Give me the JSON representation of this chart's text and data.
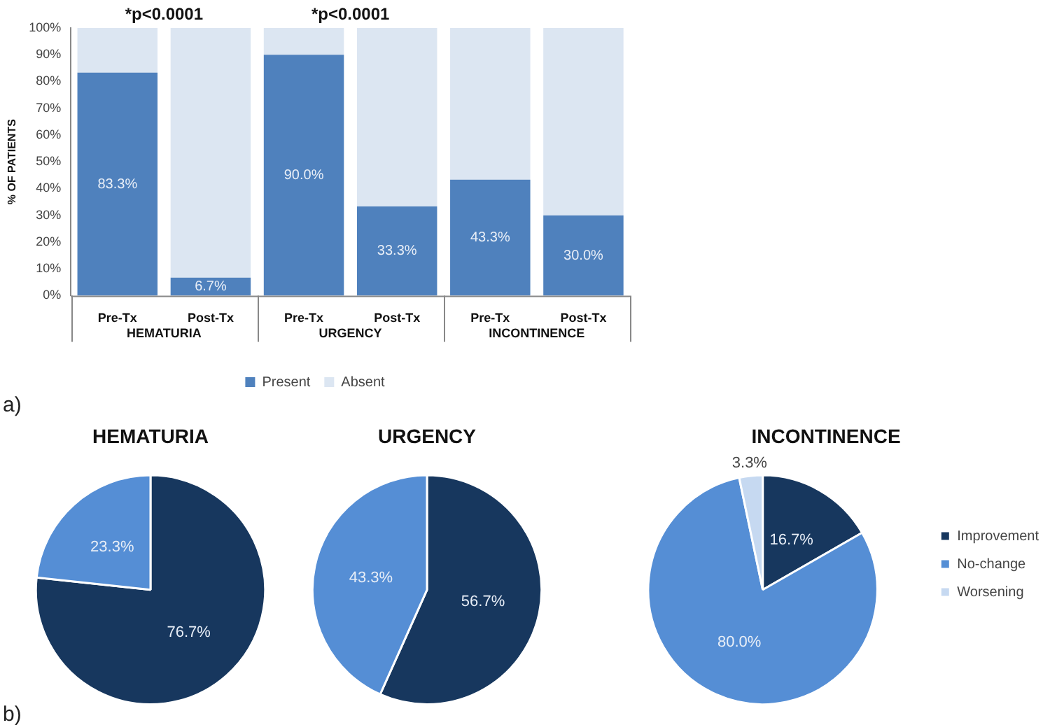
{
  "chart_data": [
    {
      "type": "bar",
      "ylabel": "% OF PATIENTS",
      "stacked": true,
      "categories": [
        "Pre-Tx",
        "Post-Tx",
        "Pre-Tx",
        "Post-Tx",
        "Pre-Tx",
        "Post-Tx"
      ],
      "series": [
        {
          "name": "Present",
          "color": "#4f81bd",
          "values": [
            83.3,
            6.7,
            90.0,
            33.3,
            43.3,
            30.0
          ],
          "value_labels": [
            "83.3%",
            "6.7%",
            "90.0%",
            "33.3%",
            "43.3%",
            "30.0%"
          ]
        },
        {
          "name": "Absent",
          "color": "#dce6f2",
          "values": [
            16.7,
            93.3,
            10.0,
            66.7,
            56.7,
            70.0
          ]
        }
      ],
      "ylim": [
        0,
        100
      ],
      "yticks": [
        {
          "value": 0,
          "label": "0%"
        },
        {
          "value": 10,
          "label": "10%"
        },
        {
          "value": 20,
          "label": "20%"
        },
        {
          "value": 30,
          "label": "30%"
        },
        {
          "value": 40,
          "label": "40%"
        },
        {
          "value": 50,
          "label": "50%"
        },
        {
          "value": 60,
          "label": "60%"
        },
        {
          "value": 70,
          "label": "70%"
        },
        {
          "value": 80,
          "label": "80%"
        },
        {
          "value": 90,
          "label": "90%"
        },
        {
          "value": 100,
          "label": "100%"
        }
      ],
      "grid": false,
      "legend": "bottom",
      "annotations": [
        "*p<0.0001",
        "*p<0.0001",
        "HEMATURIA",
        "URGENCY",
        "INCONTINENCE",
        "a)"
      ]
    },
    {
      "type": "pie",
      "title": "HEMATURIA",
      "categories": [
        null,
        null
      ],
      "values": [
        76.7,
        23.3
      ],
      "colors": [
        "#17375e",
        "#558ed5"
      ],
      "value_labels": [
        "76.7%",
        "23.3%"
      ],
      "legend": false,
      "annotations": [
        "b)"
      ]
    },
    {
      "type": "pie",
      "title": "URGENCY",
      "categories": [
        null,
        null
      ],
      "values": [
        56.7,
        43.3
      ],
      "colors": [
        "#17375e",
        "#558ed5"
      ],
      "value_labels": [
        "56.7%",
        "43.3%"
      ],
      "legend": false
    },
    {
      "type": "pie",
      "title": "INCONTINENCE",
      "categories": [
        "Improvement",
        "No-change",
        "Worsening"
      ],
      "values": [
        16.7,
        80.0,
        3.3
      ],
      "colors": [
        "#17375e",
        "#558ed5",
        "#c6d9f1"
      ],
      "value_labels": [
        "16.7%",
        "80.0%",
        "3.3%"
      ],
      "legend": "right"
    }
  ]
}
